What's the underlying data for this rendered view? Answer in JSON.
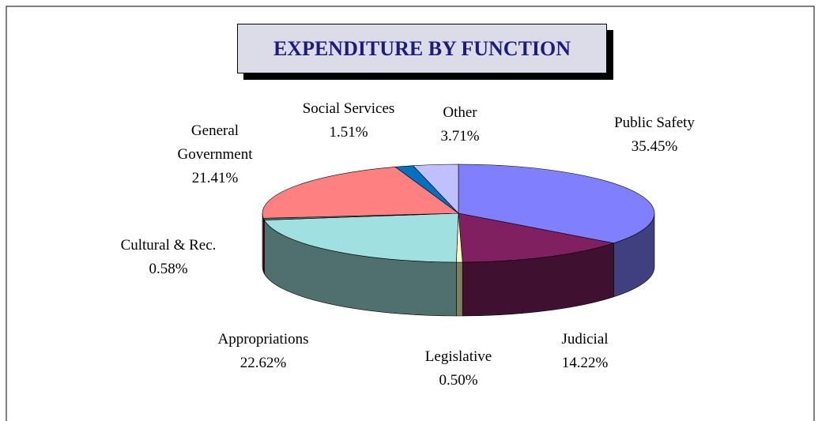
{
  "chart_data": {
    "type": "pie3d",
    "title": "EXPENDITURE BY FUNCTION",
    "categories": [
      "Public Safety",
      "Judicial",
      "Legislative",
      "Appropriations",
      "Cultural & Rec.",
      "General Government",
      "Social Services",
      "Other"
    ],
    "values": [
      35.45,
      14.22,
      0.5,
      22.62,
      0.58,
      21.41,
      1.51,
      3.71
    ],
    "value_labels": [
      "35.45%",
      "14.22%",
      "0.50%",
      "22.62%",
      "0.58%",
      "21.41%",
      "1.51%",
      "3.71%"
    ],
    "colors": [
      "#8080ff",
      "#802060",
      "#ffffc0",
      "#a0e0e0",
      "#4a7a7a",
      "#ff8080",
      "#0070c0",
      "#c0c0ff"
    ]
  }
}
